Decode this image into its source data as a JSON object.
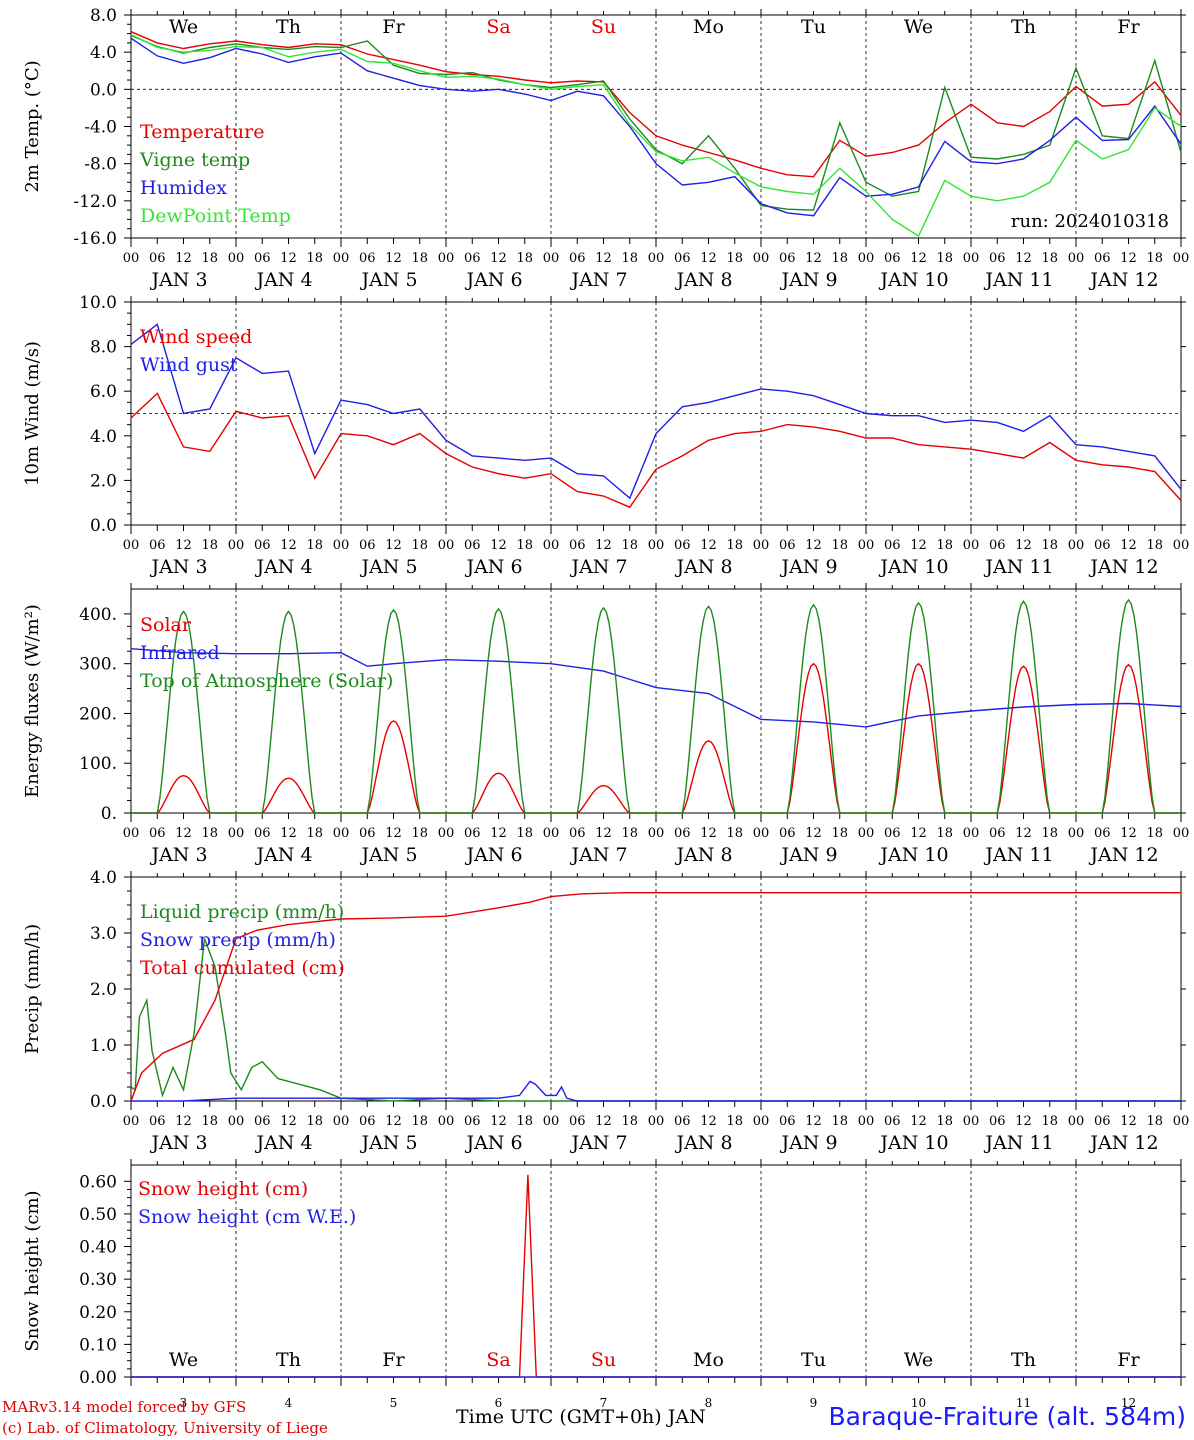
{
  "colors": {
    "red": "#e60000",
    "darkgreen": "#1e8a1e",
    "blue": "#1f1fe6",
    "lightgreen": "#33e633",
    "weekend": "#e60000",
    "axis": "#000000"
  },
  "days": [
    "We",
    "Th",
    "Fr",
    "Sa",
    "Su",
    "Mo",
    "Tu",
    "We",
    "Th",
    "Fr"
  ],
  "day_numbers": [
    "3",
    "4",
    "5",
    "6",
    "7",
    "8",
    "9",
    "10",
    "11",
    "12"
  ],
  "date_labels": [
    "JAN  3",
    "JAN  4",
    "JAN  5",
    "JAN  6",
    "JAN  7",
    "JAN  8",
    "JAN  9",
    "JAN 10",
    "JAN 11",
    "JAN 12"
  ],
  "hour_ticks": [
    "00",
    "06",
    "12",
    "18"
  ],
  "run_label": "run: 2024010318",
  "footer": {
    "model": "MARv3.14 model forced by GFS",
    "copyright": "(c) Lab. of Climatology, University of Liege",
    "xlabel": "Time UTC (GMT+0h) JAN",
    "station": "Baraque-Fraiture (alt. 584m)"
  },
  "chart_data": [
    {
      "type": "line",
      "ylabel": "2m Temp. (°C)",
      "ylim": [
        -16,
        8
      ],
      "yticks": [
        "8.0",
        "4.0",
        "0.0",
        "-4.0",
        "-8.0",
        "-12.0",
        "-16.0"
      ],
      "ytick_values": [
        8,
        4,
        0,
        -4,
        -8,
        -12,
        -16
      ],
      "dashed_y": 0,
      "x_days": [
        0,
        10
      ],
      "series": [
        {
          "name": "Temperature",
          "color": "red",
          "x": [
            0,
            0.25,
            0.5,
            0.75,
            1,
            1.25,
            1.5,
            1.75,
            2,
            2.25,
            2.5,
            2.75,
            3,
            3.25,
            3.5,
            3.75,
            4,
            4.25,
            4.5,
            4.75,
            5,
            5.25,
            5.5,
            5.75,
            6,
            6.25,
            6.5,
            6.75,
            7,
            7.25,
            7.5,
            7.75,
            8,
            8.25,
            8.5,
            8.75,
            9,
            9.25,
            9.5,
            9.75,
            10
          ],
          "y": [
            6.2,
            5.0,
            4.4,
            4.9,
            5.2,
            4.8,
            4.5,
            4.9,
            4.8,
            3.8,
            3.2,
            2.6,
            1.9,
            1.6,
            1.4,
            1.0,
            0.7,
            0.9,
            0.8,
            -2.5,
            -5.0,
            -6.0,
            -6.8,
            -7.6,
            -8.5,
            -9.2,
            -9.4,
            -5.5,
            -7.2,
            -6.8,
            -6.0,
            -3.6,
            -1.6,
            -3.6,
            -4.0,
            -2.4,
            0.3,
            -1.8,
            -1.6,
            0.8,
            -2.8
          ]
        },
        {
          "name": "Vigne temp",
          "color": "darkgreen",
          "x": [
            0,
            0.25,
            0.5,
            0.75,
            1,
            1.25,
            1.5,
            1.75,
            2,
            2.25,
            2.5,
            2.75,
            3,
            3.25,
            3.5,
            3.75,
            4,
            4.25,
            4.5,
            4.75,
            5,
            5.25,
            5.5,
            5.75,
            6,
            6.25,
            6.5,
            6.75,
            7,
            7.25,
            7.5,
            7.75,
            8,
            8.25,
            8.5,
            8.75,
            9,
            9.25,
            9.5,
            9.75,
            10
          ],
          "y": [
            5.8,
            4.6,
            3.9,
            4.5,
            4.9,
            4.5,
            4.3,
            4.6,
            4.5,
            5.2,
            2.6,
            1.7,
            1.6,
            1.8,
            1.0,
            0.5,
            0.2,
            0.5,
            0.9,
            -3.2,
            -6.5,
            -8.0,
            -5.0,
            -8.5,
            -12.5,
            -12.9,
            -13.0,
            -3.6,
            -10.0,
            -11.5,
            -11.0,
            0.2,
            -7.3,
            -7.5,
            -7.0,
            -6.0,
            2.3,
            -5.0,
            -5.3,
            3.1,
            -6.8
          ]
        },
        {
          "name": "Humidex",
          "color": "blue",
          "x": [
            0,
            0.25,
            0.5,
            0.75,
            1,
            1.25,
            1.5,
            1.75,
            2,
            2.25,
            2.5,
            2.75,
            3,
            3.25,
            3.5,
            3.75,
            4,
            4.25,
            4.5,
            4.75,
            5,
            5.25,
            5.5,
            5.75,
            6,
            6.25,
            6.5,
            6.75,
            7,
            7.25,
            7.5,
            7.75,
            8,
            8.25,
            8.5,
            8.75,
            9,
            9.25,
            9.5,
            9.75,
            10
          ],
          "y": [
            5.5,
            3.6,
            2.8,
            3.4,
            4.4,
            3.8,
            2.9,
            3.5,
            3.9,
            2.0,
            1.2,
            0.4,
            0.0,
            -0.2,
            0.0,
            -0.5,
            -1.2,
            -0.2,
            -0.7,
            -4.0,
            -8.0,
            -10.3,
            -10.0,
            -9.4,
            -12.3,
            -13.3,
            -13.6,
            -9.5,
            -11.5,
            -11.3,
            -10.5,
            -5.6,
            -7.8,
            -8.0,
            -7.5,
            -5.5,
            -3.0,
            -5.5,
            -5.4,
            -1.8,
            -5.9
          ]
        },
        {
          "name": "DewPoint Temp",
          "color": "lightgreen",
          "x": [
            0,
            0.25,
            0.5,
            0.75,
            1,
            1.25,
            1.5,
            1.75,
            2,
            2.25,
            2.5,
            2.75,
            3,
            3.25,
            3.5,
            3.75,
            4,
            4.25,
            4.5,
            4.75,
            5,
            5.25,
            5.5,
            5.75,
            6,
            6.25,
            6.5,
            6.75,
            7,
            7.25,
            7.5,
            7.75,
            8,
            8.25,
            8.5,
            8.75,
            9,
            9.25,
            9.5,
            9.75,
            10
          ],
          "y": [
            5.9,
            4.5,
            4.0,
            4.2,
            4.6,
            4.5,
            3.5,
            4.0,
            4.3,
            3.0,
            2.8,
            2.0,
            1.3,
            1.4,
            1.1,
            0.5,
            0.0,
            0.3,
            0.5,
            -3.8,
            -6.7,
            -7.7,
            -7.3,
            -9.0,
            -10.5,
            -11.0,
            -11.3,
            -8.5,
            -11.0,
            -14.0,
            -15.8,
            -9.8,
            -11.5,
            -12.0,
            -11.5,
            -10.0,
            -5.5,
            -7.5,
            -6.5,
            -2.0,
            -4.0
          ]
        }
      ]
    },
    {
      "type": "line",
      "ylabel": "10m Wind (m/s)",
      "ylim": [
        0,
        10
      ],
      "yticks": [
        "10.0",
        "8.0",
        "6.0",
        "4.0",
        "2.0",
        "0.0"
      ],
      "ytick_values": [
        10,
        8,
        6,
        4,
        2,
        0
      ],
      "dashed_y": 5,
      "x_days": [
        0,
        10
      ],
      "series": [
        {
          "name": "Wind speed",
          "color": "red",
          "x": [
            0,
            0.25,
            0.5,
            0.75,
            1,
            1.25,
            1.5,
            1.75,
            2,
            2.25,
            2.5,
            2.75,
            3,
            3.25,
            3.5,
            3.75,
            4,
            4.25,
            4.5,
            4.75,
            5,
            5.25,
            5.5,
            5.75,
            6,
            6.25,
            6.5,
            6.75,
            7,
            7.25,
            7.5,
            7.75,
            8,
            8.25,
            8.5,
            8.75,
            9,
            9.25,
            9.5,
            9.75,
            10
          ],
          "y": [
            4.8,
            5.9,
            3.5,
            3.3,
            5.1,
            4.8,
            4.9,
            2.1,
            4.1,
            4.0,
            3.6,
            4.1,
            3.2,
            2.6,
            2.3,
            2.1,
            2.3,
            1.5,
            1.3,
            0.8,
            2.5,
            3.1,
            3.8,
            4.1,
            4.2,
            4.5,
            4.4,
            4.2,
            3.9,
            3.9,
            3.6,
            3.5,
            3.4,
            3.2,
            3.0,
            3.7,
            2.9,
            2.7,
            2.6,
            2.4,
            1.1
          ]
        },
        {
          "name": "Wind gust",
          "color": "blue",
          "x": [
            0,
            0.25,
            0.5,
            0.75,
            1,
            1.25,
            1.5,
            1.75,
            2,
            2.25,
            2.5,
            2.75,
            3,
            3.25,
            3.5,
            3.75,
            4,
            4.25,
            4.5,
            4.75,
            5,
            5.25,
            5.5,
            5.75,
            6,
            6.25,
            6.5,
            6.75,
            7,
            7.25,
            7.5,
            7.75,
            8,
            8.25,
            8.5,
            8.75,
            9,
            9.25,
            9.5,
            9.75,
            10
          ],
          "y": [
            8.1,
            9.0,
            5.0,
            5.2,
            7.5,
            6.8,
            6.9,
            3.2,
            5.6,
            5.4,
            5.0,
            5.2,
            3.8,
            3.1,
            3.0,
            2.9,
            3.0,
            2.3,
            2.2,
            1.2,
            4.1,
            5.3,
            5.5,
            5.8,
            6.1,
            6.0,
            5.8,
            5.4,
            5.0,
            4.9,
            4.9,
            4.6,
            4.7,
            4.6,
            4.2,
            4.9,
            3.6,
            3.5,
            3.3,
            3.1,
            1.6
          ]
        }
      ]
    },
    {
      "type": "line",
      "ylabel": "Energy fluxes (W/m²)",
      "ylim": [
        0,
        450
      ],
      "yticks": [
        "400.",
        "300.",
        "200.",
        "100.",
        "0."
      ],
      "ytick_values": [
        400,
        300,
        200,
        100,
        0
      ],
      "x_days": [
        0,
        10
      ],
      "series": [
        {
          "name": "Solar",
          "color": "red",
          "peaks": [
            75,
            70,
            185,
            80,
            55,
            145,
            300,
            300,
            295,
            298
          ]
        },
        {
          "name": "Infrared",
          "color": "blue",
          "x": [
            0,
            0.5,
            1,
            1.5,
            2,
            2.25,
            2.5,
            3,
            3.5,
            4,
            4.5,
            5,
            5.5,
            6,
            6.5,
            7,
            7.5,
            8,
            8.5,
            9,
            9.5,
            10
          ],
          "y": [
            330,
            322,
            320,
            320,
            322,
            295,
            300,
            308,
            305,
            300,
            285,
            252,
            240,
            188,
            183,
            173,
            195,
            205,
            213,
            218,
            220,
            214
          ]
        },
        {
          "name": "Top of Atmosphere (Solar)",
          "color": "darkgreen",
          "peaks": [
            405,
            405,
            408,
            410,
            412,
            415,
            418,
            422,
            425,
            428
          ]
        }
      ]
    },
    {
      "type": "line",
      "ylabel": "Precip (mm/h)",
      "ylim": [
        0,
        4
      ],
      "yticks": [
        "4.0",
        "3.0",
        "2.0",
        "1.0",
        "0.0"
      ],
      "ytick_values": [
        4,
        3,
        2,
        1,
        0
      ],
      "x_days": [
        0,
        10
      ],
      "series": [
        {
          "name": "Liquid precip (mm/h)",
          "color": "darkgreen",
          "x": [
            0,
            0.04,
            0.08,
            0.15,
            0.2,
            0.3,
            0.4,
            0.5,
            0.6,
            0.7,
            0.8,
            0.9,
            0.95,
            1.05,
            1.15,
            1.25,
            1.4,
            1.6,
            1.8,
            2.0,
            2.5,
            3.0,
            3.5,
            4.0,
            4.5,
            10
          ],
          "y": [
            0.25,
            0.2,
            1.5,
            1.8,
            0.9,
            0.1,
            0.6,
            0.2,
            1.2,
            2.9,
            2.4,
            1.2,
            0.5,
            0.2,
            0.6,
            0.7,
            0.4,
            0.3,
            0.2,
            0.05,
            0.0,
            0.05,
            0.0,
            0.0,
            0.0,
            0.0
          ]
        },
        {
          "name": "Snow precip (mm/h)",
          "color": "blue",
          "x": [
            0,
            0.5,
            1,
            2,
            3,
            3.5,
            3.7,
            3.8,
            3.85,
            3.95,
            4.05,
            4.1,
            4.15,
            4.25,
            5,
            10
          ],
          "y": [
            0,
            0,
            0.05,
            0.05,
            0.05,
            0.05,
            0.1,
            0.35,
            0.3,
            0.1,
            0.1,
            0.25,
            0.05,
            0.0,
            0.0,
            0.0
          ]
        },
        {
          "name": "Total cumulated (cm)",
          "color": "red",
          "x": [
            0,
            0.1,
            0.3,
            0.6,
            0.8,
            1.0,
            1.2,
            1.5,
            2.0,
            2.5,
            3.0,
            3.5,
            3.8,
            4.0,
            4.3,
            4.7,
            5,
            10
          ],
          "y": [
            0,
            0.5,
            0.85,
            1.1,
            1.8,
            2.9,
            3.05,
            3.15,
            3.25,
            3.27,
            3.3,
            3.45,
            3.55,
            3.65,
            3.7,
            3.72,
            3.72,
            3.72
          ]
        }
      ]
    },
    {
      "type": "line",
      "ylabel": "Snow height (cm)",
      "ylim": [
        0,
        0.65
      ],
      "yticks": [
        "0.60",
        "0.50",
        "0.40",
        "0.30",
        "0.20",
        "0.10",
        "0.00"
      ],
      "ytick_values": [
        0.6,
        0.5,
        0.4,
        0.3,
        0.2,
        0.1,
        0
      ],
      "x_days": [
        0,
        10
      ],
      "series": [
        {
          "name": "Snow height (cm)",
          "color": "red",
          "x": [
            0,
            3.7,
            3.78,
            3.86,
            10
          ],
          "y": [
            0,
            0,
            0.62,
            0,
            0
          ]
        },
        {
          "name": "Snow height (cm W.E.)",
          "color": "blue",
          "x": [
            0,
            10
          ],
          "y": [
            0,
            0
          ]
        }
      ]
    }
  ]
}
